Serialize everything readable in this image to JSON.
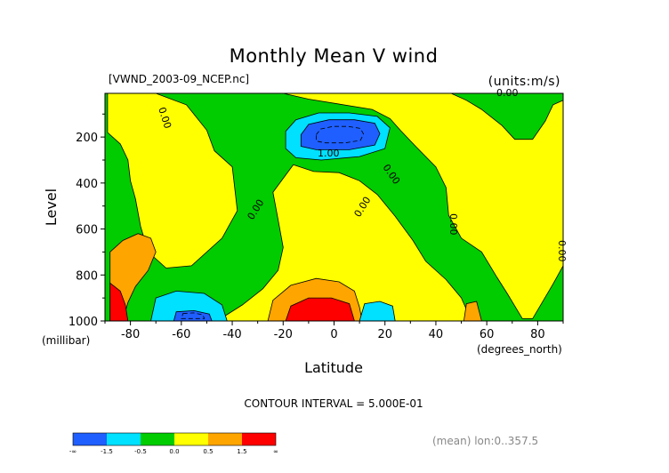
{
  "chart_data": {
    "type": "contour",
    "title": "Monthly Mean V wind",
    "source_label": "[VWND_2003-09_NCEP.nc]",
    "units_label": "(units:m/s)",
    "xlabel": "Latitude",
    "xunits": "(degrees_north)",
    "ylabel": "Level",
    "yunits": "(millibar)",
    "x_ticks": [
      -80,
      -60,
      -40,
      -20,
      0,
      20,
      40,
      60,
      80
    ],
    "x_tick_labels": [
      "-80",
      "-60",
      "-40",
      "-20",
      "0",
      "20",
      "40",
      "60",
      "80"
    ],
    "y_ticks": [
      200,
      400,
      600,
      800,
      1000
    ],
    "y_tick_labels": [
      "200",
      "400",
      "600",
      "800",
      "1000"
    ],
    "xlim": [
      -90,
      90
    ],
    "ylim": [
      1000,
      10
    ],
    "contour_interval_text": "CONTOUR INTERVAL = 5.000E-01",
    "footer_text": "(mean) lon:0..357.5",
    "contour_labels": [
      "0.00",
      "0.00",
      "1.00",
      "0.00",
      "0.00",
      "0.00",
      "0.00",
      "0.00"
    ],
    "colorbar": {
      "levels": [
        "-∞",
        "-1.5",
        "-0.5",
        "0.0",
        "0.5",
        "1.5",
        "∞"
      ],
      "colors": [
        "#1f5fff",
        "#00e0ff",
        "#00cc00",
        "#ffff00",
        "#ffa500",
        "#ff0000"
      ]
    },
    "regions": [
      {
        "name": "plot-background-zone",
        "fill": "#00cc00",
        "points": [
          [
            -90,
            10
          ],
          [
            90,
            10
          ],
          [
            90,
            1000
          ],
          [
            -90,
            1000
          ]
        ]
      },
      {
        "name": "southern-yellow-zone",
        "fill": "#ffff00",
        "points": [
          [
            -89,
            10
          ],
          [
            -70,
            10
          ],
          [
            -58,
            60
          ],
          [
            -50,
            170
          ],
          [
            -47,
            260
          ],
          [
            -40,
            330
          ],
          [
            -38,
            520
          ],
          [
            -44,
            640
          ],
          [
            -56,
            760
          ],
          [
            -66,
            770
          ],
          [
            -73,
            700
          ],
          [
            -76,
            590
          ],
          [
            -78,
            470
          ],
          [
            -80,
            390
          ],
          [
            -81,
            300
          ],
          [
            -84,
            230
          ],
          [
            -89,
            180
          ]
        ]
      },
      {
        "name": "central-yellow-zone",
        "fill": "#ffff00",
        "points": [
          [
            -16,
            320
          ],
          [
            -8,
            350
          ],
          [
            2,
            355
          ],
          [
            10,
            390
          ],
          [
            17,
            450
          ],
          [
            24,
            545
          ],
          [
            31,
            650
          ],
          [
            36,
            740
          ],
          [
            44,
            820
          ],
          [
            50,
            900
          ],
          [
            54,
            1000
          ],
          [
            -46,
            1000
          ],
          [
            -36,
            930
          ],
          [
            -28,
            860
          ],
          [
            -22,
            780
          ],
          [
            -20,
            680
          ],
          [
            -22,
            560
          ],
          [
            -24,
            440
          ]
        ]
      },
      {
        "name": "northern-yellow-zone",
        "fill": "#ffff00",
        "points": [
          [
            -20,
            10
          ],
          [
            -10,
            35
          ],
          [
            15,
            80
          ],
          [
            22,
            120
          ],
          [
            26,
            170
          ],
          [
            32,
            240
          ],
          [
            40,
            330
          ],
          [
            44,
            420
          ],
          [
            45,
            540
          ],
          [
            50,
            640
          ],
          [
            58,
            700
          ],
          [
            64,
            810
          ],
          [
            68,
            880
          ],
          [
            74,
            990
          ],
          [
            78,
            990
          ],
          [
            86,
            840
          ],
          [
            90,
            760
          ],
          [
            90,
            10
          ]
        ]
      },
      {
        "name": "green-patch-north",
        "fill": "#00cc00",
        "points": [
          [
            46,
            10
          ],
          [
            52,
            40
          ],
          [
            58,
            80
          ],
          [
            66,
            150
          ],
          [
            71,
            210
          ],
          [
            78,
            210
          ],
          [
            83,
            130
          ],
          [
            86,
            60
          ],
          [
            90,
            40
          ],
          [
            90,
            10
          ]
        ]
      },
      {
        "name": "orange-lower-left",
        "fill": "#ffa500",
        "points": [
          [
            -88,
            700
          ],
          [
            -83,
            650
          ],
          [
            -77,
            620
          ],
          [
            -72,
            640
          ],
          [
            -70,
            700
          ],
          [
            -73,
            780
          ],
          [
            -78,
            850
          ],
          [
            -81,
            920
          ],
          [
            -83,
            1000
          ],
          [
            -88,
            1000
          ]
        ]
      },
      {
        "name": "red-lower-left",
        "fill": "#ff0000",
        "points": [
          [
            -88,
            835
          ],
          [
            -84,
            870
          ],
          [
            -82,
            930
          ],
          [
            -81,
            1000
          ],
          [
            -88,
            1000
          ]
        ]
      },
      {
        "name": "cyan-low-south",
        "fill": "#00e0ff",
        "points": [
          [
            -70,
            900
          ],
          [
            -62,
            870
          ],
          [
            -51,
            880
          ],
          [
            -44,
            930
          ],
          [
            -42,
            1000
          ],
          [
            -72,
            1000
          ]
        ]
      },
      {
        "name": "blue-low-south",
        "fill": "#1f5fff",
        "points": [
          [
            -62,
            960
          ],
          [
            -55,
            955
          ],
          [
            -49,
            970
          ],
          [
            -48,
            1000
          ],
          [
            -63,
            1000
          ]
        ]
      },
      {
        "name": "orange-low-center",
        "fill": "#ffa500",
        "points": [
          [
            -26,
            1000
          ],
          [
            -24,
            910
          ],
          [
            -17,
            845
          ],
          [
            -7,
            815
          ],
          [
            2,
            830
          ],
          [
            8,
            870
          ],
          [
            10,
            940
          ],
          [
            11,
            1000
          ]
        ]
      },
      {
        "name": "red-low-center",
        "fill": "#ff0000",
        "points": [
          [
            -19,
            1000
          ],
          [
            -17,
            935
          ],
          [
            -10,
            900
          ],
          [
            -1,
            900
          ],
          [
            6,
            925
          ],
          [
            8,
            1000
          ]
        ]
      },
      {
        "name": "cyan-low-north",
        "fill": "#00e0ff",
        "points": [
          [
            10,
            1000
          ],
          [
            12,
            925
          ],
          [
            18,
            915
          ],
          [
            23,
            935
          ],
          [
            24,
            1000
          ]
        ]
      },
      {
        "name": "orange-low-north",
        "fill": "#ffa500",
        "points": [
          [
            51,
            1000
          ],
          [
            52,
            925
          ],
          [
            56,
            915
          ],
          [
            58,
            1000
          ]
        ]
      },
      {
        "name": "cyan-upper-jet",
        "fill": "#00e0ff",
        "points": [
          [
            -19,
            175
          ],
          [
            -15,
            125
          ],
          [
            -6,
            95
          ],
          [
            6,
            95
          ],
          [
            17,
            110
          ],
          [
            22,
            160
          ],
          [
            20,
            250
          ],
          [
            10,
            285
          ],
          [
            -5,
            300
          ],
          [
            -15,
            290
          ],
          [
            -19,
            250
          ]
        ]
      },
      {
        "name": "blue-upper-jet",
        "fill": "#1f5fff",
        "points": [
          [
            -13,
            190
          ],
          [
            -10,
            145
          ],
          [
            -2,
            125
          ],
          [
            8,
            125
          ],
          [
            16,
            140
          ],
          [
            18,
            185
          ],
          [
            16,
            235
          ],
          [
            6,
            255
          ],
          [
            -7,
            255
          ],
          [
            -13,
            240
          ]
        ]
      }
    ]
  }
}
